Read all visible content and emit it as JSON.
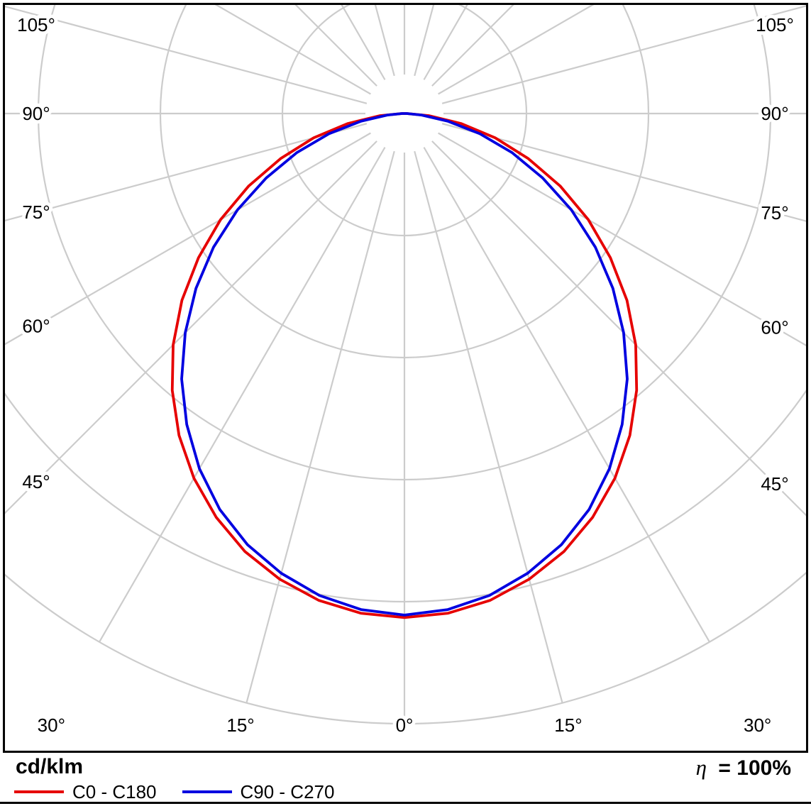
{
  "footer": {
    "efficiency_symbol": "η",
    "efficiency_value": "= 100%"
  },
  "chart_data": {
    "type": "polar",
    "subtype": "photometric-luminous-intensity-distribution",
    "title": "",
    "units_label": "cd/klm",
    "efficiency_text": "η = 100%",
    "grid": {
      "angle_step_deg": 15,
      "radial_rings": 5,
      "ring_values_labeled": false,
      "grid_color": "#cccccc",
      "frame_color": "#000000"
    },
    "angle_labels": [
      {
        "angle": -105,
        "text": "105°"
      },
      {
        "angle": -90,
        "text": "90°"
      },
      {
        "angle": -75,
        "text": "75°"
      },
      {
        "angle": -60,
        "text": "60°"
      },
      {
        "angle": -45,
        "text": "45°"
      },
      {
        "angle": -30,
        "text": "30°"
      },
      {
        "angle": -15,
        "text": "15°"
      },
      {
        "angle": 0,
        "text": "0°"
      },
      {
        "angle": 15,
        "text": "15°"
      },
      {
        "angle": 30,
        "text": "30°"
      },
      {
        "angle": 45,
        "text": "45°"
      },
      {
        "angle": 60,
        "text": "60°"
      },
      {
        "angle": 75,
        "text": "75°"
      },
      {
        "angle": 90,
        "text": "90°"
      },
      {
        "angle": 105,
        "text": "105°"
      }
    ],
    "values_unit": "grid divisions (radial rings are unlabeled in source image)",
    "radial_range_divisions": [
      0,
      5
    ],
    "gamma_deg": [
      0,
      5,
      10,
      15,
      20,
      25,
      30,
      35,
      40,
      45,
      50,
      55,
      60,
      65,
      70,
      75,
      80,
      85,
      90
    ],
    "series": [
      {
        "name": "C0 - C180",
        "color": "#e60000",
        "values_div": [
          4.13,
          4.11,
          4.05,
          3.95,
          3.82,
          3.65,
          3.45,
          3.22,
          2.96,
          2.68,
          2.38,
          2.06,
          1.74,
          1.41,
          1.08,
          0.77,
          0.47,
          0.2,
          0.02
        ]
      },
      {
        "name": "C90 - C270",
        "color": "#0000e0",
        "values_div": [
          4.11,
          4.08,
          4.01,
          3.9,
          3.76,
          3.58,
          3.36,
          3.11,
          2.84,
          2.54,
          2.23,
          1.91,
          1.58,
          1.25,
          0.94,
          0.64,
          0.36,
          0.14,
          0.02
        ]
      }
    ]
  }
}
